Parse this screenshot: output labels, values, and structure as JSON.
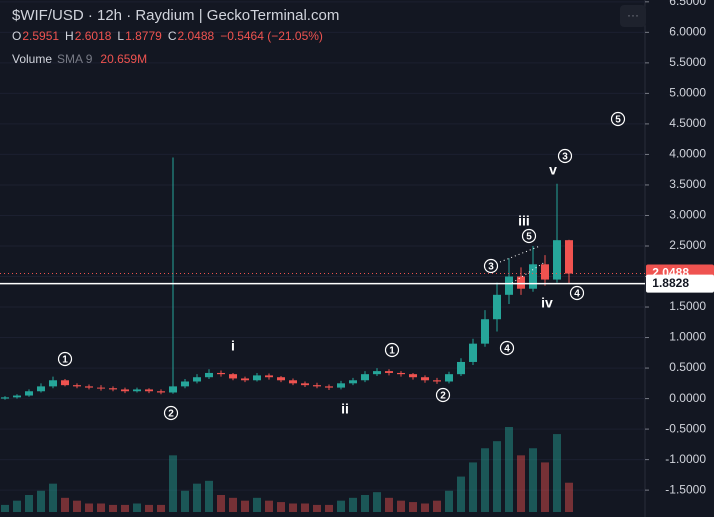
{
  "chart_data": {
    "type": "candlestick",
    "title": "$WIF/USD · 12h · Raydium | GeckoTerminal.com",
    "ohlc_legend": [
      {
        "label": "O",
        "value": "2.5951"
      },
      {
        "label": "H",
        "value": "2.6018"
      },
      {
        "label": "L",
        "value": "1.8779"
      },
      {
        "label": "C",
        "value": "2.0488"
      }
    ],
    "change": "−0.5464 (−21.05%)",
    "volume_legend": {
      "label": "Volume",
      "indicator": "SMA 9",
      "value": "20.659M"
    },
    "up_color": "#26a69a",
    "down_color": "#ef5350",
    "open": [
      0,
      0.02,
      0.05,
      0.12,
      0.2,
      0.3,
      0.22,
      0.2,
      0.18,
      0.17,
      0.15,
      0.12,
      0.15,
      0.12,
      0.1,
      0.2,
      0.28,
      0.35,
      0.42,
      0.4,
      0.33,
      0.3,
      0.38,
      0.35,
      0.3,
      0.25,
      0.22,
      0.2,
      0.18,
      0.25,
      0.3,
      0.4,
      0.45,
      0.42,
      0.4,
      0.35,
      0.3,
      0.28,
      0.4,
      0.6,
      0.9,
      1.3,
      1.7,
      2.0,
      1.8,
      2.2,
      1.95,
      2.5951
    ],
    "high": [
      0.04,
      0.07,
      0.15,
      0.25,
      0.36,
      0.32,
      0.25,
      0.23,
      0.22,
      0.2,
      0.18,
      0.18,
      0.17,
      0.15,
      3.95,
      0.32,
      0.4,
      0.48,
      0.46,
      0.42,
      0.36,
      0.42,
      0.41,
      0.37,
      0.33,
      0.28,
      0.26,
      0.23,
      0.29,
      0.34,
      0.45,
      0.5,
      0.48,
      0.45,
      0.42,
      0.38,
      0.34,
      0.44,
      0.66,
      0.98,
      1.45,
      1.9,
      2.3,
      2.15,
      2.5,
      2.35,
      3.52,
      2.6018
    ],
    "low": [
      -0.02,
      0.0,
      0.03,
      0.1,
      0.17,
      0.2,
      0.17,
      0.15,
      0.13,
      0.12,
      0.09,
      0.1,
      0.09,
      0.07,
      0.08,
      0.17,
      0.25,
      0.32,
      0.36,
      0.3,
      0.27,
      0.28,
      0.31,
      0.27,
      0.22,
      0.19,
      0.17,
      0.14,
      0.15,
      0.22,
      0.27,
      0.37,
      0.38,
      0.36,
      0.31,
      0.26,
      0.24,
      0.25,
      0.37,
      0.55,
      0.85,
      1.1,
      1.55,
      1.7,
      1.75,
      1.85,
      1.9,
      1.8779
    ],
    "close": [
      0.02,
      0.05,
      0.12,
      0.2,
      0.3,
      0.22,
      0.2,
      0.18,
      0.17,
      0.15,
      0.12,
      0.15,
      0.12,
      0.1,
      0.2,
      0.28,
      0.35,
      0.42,
      0.4,
      0.33,
      0.3,
      0.38,
      0.35,
      0.3,
      0.25,
      0.22,
      0.2,
      0.18,
      0.25,
      0.3,
      0.4,
      0.45,
      0.42,
      0.4,
      0.35,
      0.3,
      0.28,
      0.4,
      0.6,
      0.9,
      1.3,
      1.7,
      2.0,
      1.8,
      2.2,
      1.95,
      2.5951,
      2.0488
    ],
    "volume": [
      5,
      8,
      12,
      15,
      20,
      10,
      8,
      6,
      6,
      5,
      5,
      6,
      5,
      5,
      40,
      15,
      20,
      22,
      12,
      10,
      8,
      10,
      8,
      7,
      6,
      6,
      5,
      5,
      8,
      10,
      12,
      14,
      10,
      8,
      7,
      6,
      8,
      15,
      25,
      35,
      45,
      50,
      60,
      40,
      45,
      35,
      55,
      20.659
    ],
    "ylim": [
      -1.94,
      6.53
    ],
    "yticks": [
      {
        "value": -1.5,
        "label": "-1.5000"
      },
      {
        "value": -1,
        "label": "-1.0000"
      },
      {
        "value": -0.5,
        "label": "-0.5000"
      },
      {
        "value": 0,
        "label": "0.0000"
      },
      {
        "value": 0.5,
        "label": "0.5000"
      },
      {
        "value": 1,
        "label": "1.0000"
      },
      {
        "value": 1.5,
        "label": "1.5000"
      },
      {
        "value": 2,
        "label": "2.0000"
      },
      {
        "value": 2.5,
        "label": "2.5000"
      },
      {
        "value": 3,
        "label": "3.0000"
      },
      {
        "value": 3.5,
        "label": "3.5000"
      },
      {
        "value": 4,
        "label": "4.0000"
      },
      {
        "value": 4.5,
        "label": "4.5000"
      },
      {
        "value": 5,
        "label": "5.0000"
      },
      {
        "value": 5.5,
        "label": "5.5000"
      },
      {
        "value": 6,
        "label": "6.0000"
      },
      {
        "value": 6.5,
        "label": "6.5000"
      }
    ],
    "price_lines": [
      {
        "value": 2.0488,
        "label": "2.0488",
        "color": "#ef5350",
        "style": "dotted"
      },
      {
        "value": 1.8828,
        "label": "1.8828",
        "color": "#ffffff",
        "style": "solid"
      }
    ],
    "annotations": [
      {
        "text": "1",
        "circled": true
      },
      {
        "text": "2",
        "circled": true
      },
      {
        "text": "i",
        "circled": false
      },
      {
        "text": "ii",
        "circled": false
      },
      {
        "text": "1",
        "circled": true
      },
      {
        "text": "2",
        "circled": true
      },
      {
        "text": "3",
        "circled": true
      },
      {
        "text": "4",
        "circled": true
      },
      {
        "text": "iii",
        "circled": false
      },
      {
        "text": "5",
        "circled": true
      },
      {
        "text": "iv",
        "circled": false
      },
      {
        "text": "v",
        "circled": false
      },
      {
        "text": "3",
        "circled": true
      },
      {
        "text": "4",
        "circled": true
      },
      {
        "text": "5",
        "circled": true
      }
    ]
  }
}
